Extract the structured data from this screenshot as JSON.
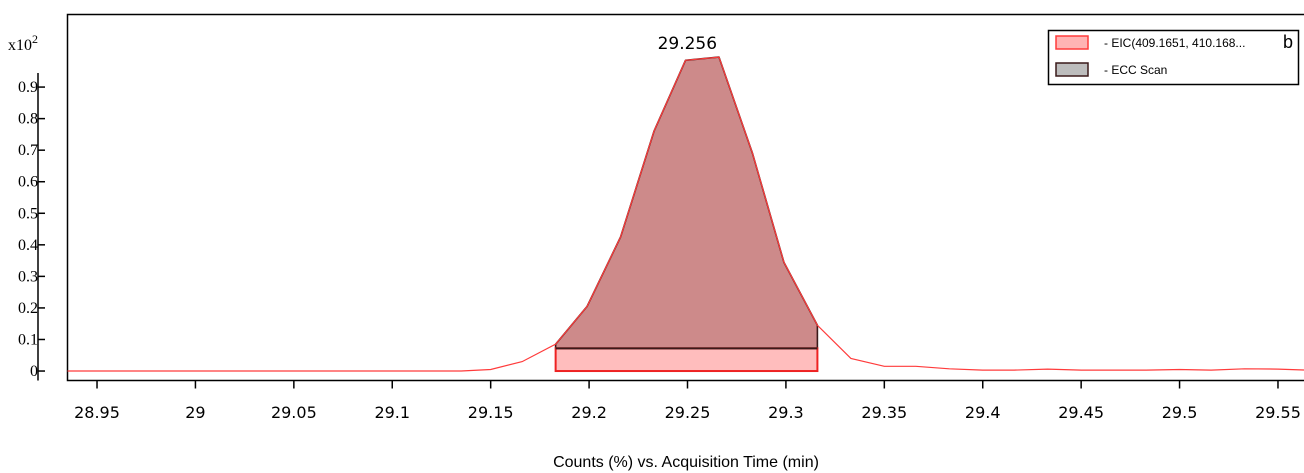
{
  "chart_data": {
    "type": "line",
    "panel_label": "b",
    "title": "",
    "xlabel": "Counts (%) vs. Acquisition Time (min)",
    "ylabel": "",
    "y_multiplier_base": "x10",
    "y_multiplier_exp": "2",
    "xlim": [
      28.935,
      29.565
    ],
    "ylim": [
      -0.03,
      1.13
    ],
    "x_ticks": [
      {
        "value": 28.95,
        "label": "28.95"
      },
      {
        "value": 29.0,
        "label": "29"
      },
      {
        "value": 29.05,
        "label": "29.05"
      },
      {
        "value": 29.1,
        "label": "29.1"
      },
      {
        "value": 29.15,
        "label": "29.15"
      },
      {
        "value": 29.2,
        "label": "29.2"
      },
      {
        "value": 29.25,
        "label": "29.25"
      },
      {
        "value": 29.3,
        "label": "29.3"
      },
      {
        "value": 29.35,
        "label": "29.35"
      },
      {
        "value": 29.4,
        "label": "29.4"
      },
      {
        "value": 29.45,
        "label": "29.45"
      },
      {
        "value": 29.5,
        "label": "29.5"
      },
      {
        "value": 29.55,
        "label": "29.55"
      }
    ],
    "y_ticks": [
      {
        "value": 0.0,
        "label": "0"
      },
      {
        "value": 0.1,
        "label": "0.1"
      },
      {
        "value": 0.2,
        "label": "0.2"
      },
      {
        "value": 0.3,
        "label": "0.3"
      },
      {
        "value": 0.4,
        "label": "0.4"
      },
      {
        "value": 0.5,
        "label": "0.5"
      },
      {
        "value": 0.6,
        "label": "0.6"
      },
      {
        "value": 0.7,
        "label": "0.7"
      },
      {
        "value": 0.8,
        "label": "0.8"
      },
      {
        "value": 0.9,
        "label": "0.9"
      }
    ],
    "series": [
      {
        "name": "- EIC(409.1651, 410.168...",
        "color": "#ff3b3b",
        "swatch_fill": "#ffb3b3",
        "x": [
          28.935,
          29.0,
          29.05,
          29.1,
          29.135,
          29.15,
          29.166,
          29.183,
          29.199,
          29.216,
          29.233,
          29.249,
          29.266,
          29.283,
          29.299,
          29.316,
          29.333,
          29.35,
          29.366,
          29.383,
          29.4,
          29.416,
          29.433,
          29.45,
          29.466,
          29.483,
          29.5,
          29.516,
          29.533,
          29.55,
          29.565
        ],
        "y": [
          0.0,
          0.0,
          0.0,
          0.0,
          0.0,
          0.005,
          0.03,
          0.085,
          0.205,
          0.425,
          0.76,
          0.985,
          0.995,
          0.69,
          0.345,
          0.145,
          0.04,
          0.015,
          0.015,
          0.007,
          0.003,
          0.003,
          0.006,
          0.003,
          0.003,
          0.003,
          0.005,
          0.003,
          0.007,
          0.006,
          0.003
        ]
      },
      {
        "name": "- ECC Scan",
        "color": "#3a1a1a",
        "swatch_fill": "#bdbdbd"
      }
    ],
    "integrated_peak": {
      "apex_label": "29.256",
      "apex_x": 29.256,
      "start": 29.183,
      "end": 29.316,
      "fill_color": "#cd8a8a",
      "baseline_fill": "#ffbdbd",
      "baseline_y": 0.072,
      "outline_color": "#3a1a1a",
      "baseline_box_color": "#ee2222"
    },
    "legend_position": "top-right",
    "grid": false
  }
}
